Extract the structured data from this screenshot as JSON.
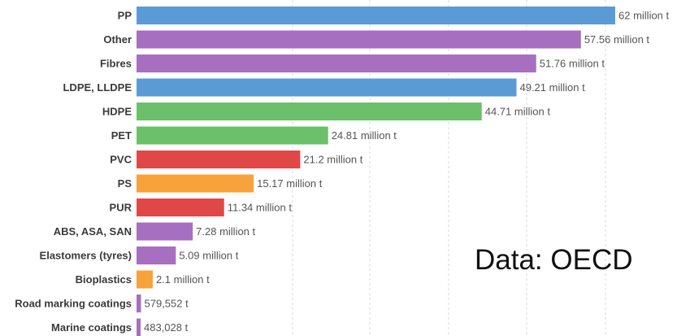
{
  "source_note": "Data: OECD",
  "chart_data": {
    "type": "bar",
    "orientation": "horizontal",
    "title": "",
    "xlabel": "",
    "ylabel": "",
    "unit": "million t",
    "xlim": [
      0,
      62
    ],
    "grid": true,
    "legend": "none",
    "bars": [
      {
        "category": "PP",
        "value": 62,
        "label": "62 million t",
        "color": "#5b9bd5"
      },
      {
        "category": "Other",
        "value": 57.56,
        "label": "57.56 million t",
        "color": "#a76fbf"
      },
      {
        "category": "Fibres",
        "value": 51.76,
        "label": "51.76 million t",
        "color": "#a76fbf"
      },
      {
        "category": "LDPE, LLDPE",
        "value": 49.21,
        "label": "49.21 million t",
        "color": "#5b9bd5"
      },
      {
        "category": "HDPE",
        "value": 44.71,
        "label": "44.71 million t",
        "color": "#6cc06b"
      },
      {
        "category": "PET",
        "value": 24.81,
        "label": "24.81 million t",
        "color": "#6cc06b"
      },
      {
        "category": "PVC",
        "value": 21.2,
        "label": "21.2 million t",
        "color": "#e04848"
      },
      {
        "category": "PS",
        "value": 15.17,
        "label": "15.17 million t",
        "color": "#f7a23a"
      },
      {
        "category": "PUR",
        "value": 11.34,
        "label": "11.34 million t",
        "color": "#e04848"
      },
      {
        "category": "ABS, ASA, SAN",
        "value": 7.28,
        "label": "7.28 million t",
        "color": "#a76fbf"
      },
      {
        "category": "Elastomers (tyres)",
        "value": 5.09,
        "label": "5.09 million t",
        "color": "#a76fbf"
      },
      {
        "category": "Bioplastics",
        "value": 2.1,
        "label": "2.1 million t",
        "color": "#f7a23a"
      },
      {
        "category": "Road marking coatings",
        "value": 0.579552,
        "label": "579,552 t",
        "color": "#a76fbf"
      },
      {
        "category": "Marine coatings",
        "value": 0.483028,
        "label": "483,028 t",
        "color": "#a76fbf"
      }
    ]
  }
}
